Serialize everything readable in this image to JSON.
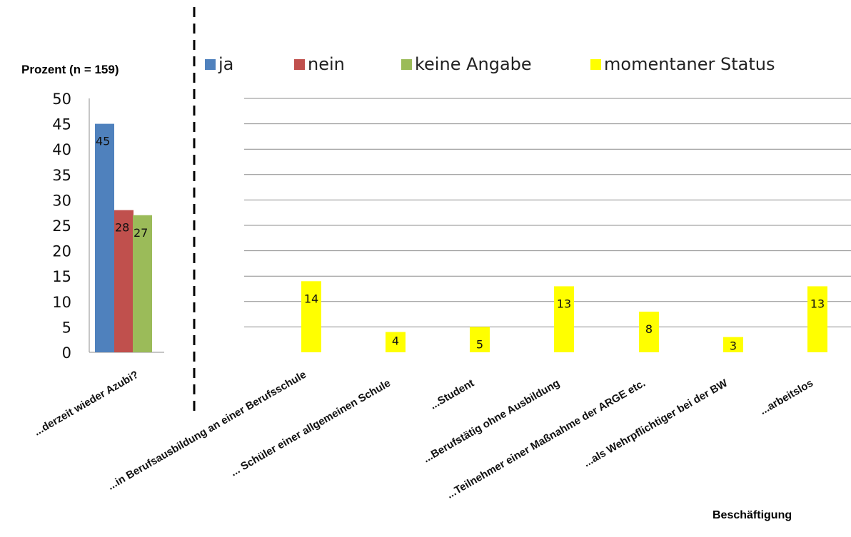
{
  "chart_data": {
    "type": "bar",
    "ylabel": "Prozent (n = 159)",
    "xlabel": "Beschäftigung",
    "ylim": [
      0,
      50
    ],
    "yticks": [
      0,
      5,
      10,
      15,
      20,
      25,
      30,
      35,
      40,
      45,
      50
    ],
    "grid": true,
    "legend": [
      {
        "name": "ja",
        "color": "#4F81BD"
      },
      {
        "name": "nein",
        "color": "#C0504D"
      },
      {
        "name": "keine Angabe",
        "color": "#9BBB59"
      },
      {
        "name": "momentaner Status",
        "color": "#FFFF00"
      }
    ],
    "categories": [
      "...derzeit wieder Azubi?",
      "...in Berufsausbildung an einer Berufsschule",
      "... Schüler einer allgemeinen Schule",
      "...Student",
      "...Berufstätig ohne Ausbildung",
      "...Teilnehmer einer Maßnahme der ARGE etc.",
      "...als Wehrpflichtiger bei der BW",
      "...arbeitslos"
    ],
    "series": [
      {
        "name": "ja",
        "color": "#4F81BD",
        "values": [
          45,
          null,
          null,
          null,
          null,
          null,
          null,
          null
        ]
      },
      {
        "name": "nein",
        "color": "#C0504D",
        "values": [
          28,
          null,
          null,
          null,
          null,
          null,
          null,
          null
        ]
      },
      {
        "name": "keine Angabe",
        "color": "#9BBB59",
        "values": [
          27,
          null,
          null,
          null,
          null,
          null,
          null,
          null
        ]
      },
      {
        "name": "momentaner Status",
        "color": "#FFFF00",
        "values": [
          null,
          14,
          4,
          5,
          13,
          8,
          3,
          13
        ]
      }
    ]
  }
}
